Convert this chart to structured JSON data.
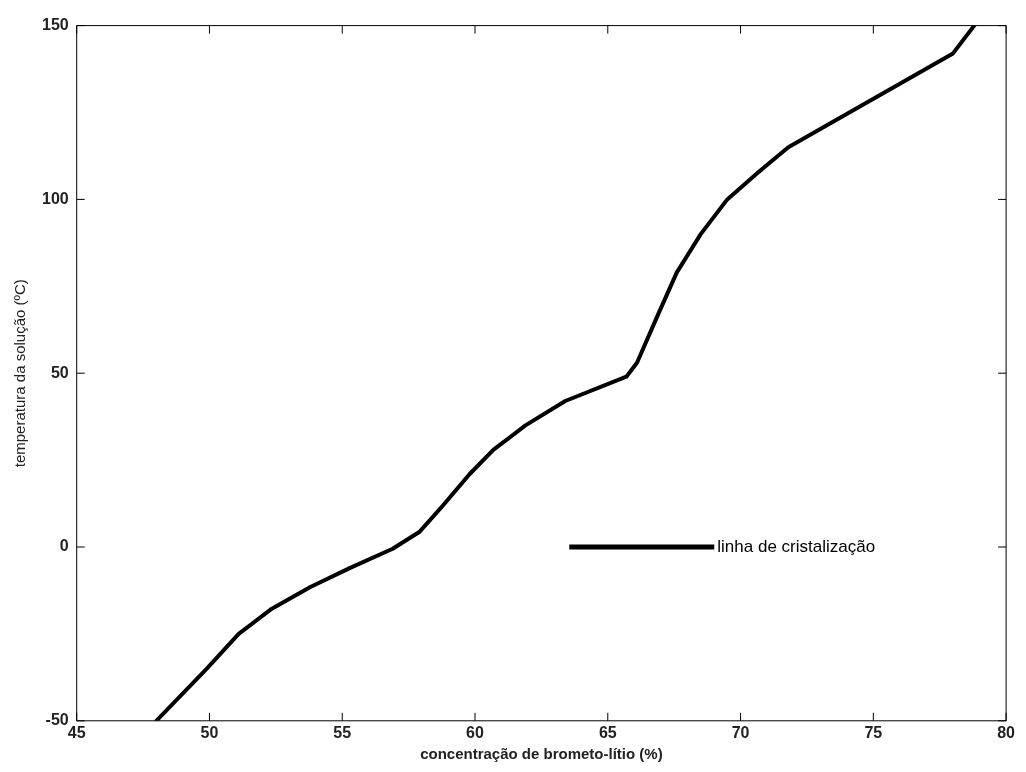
{
  "chart_data": {
    "type": "line",
    "xlabel": "concentração de brometo-lítio (%)",
    "ylabel": "temperatura da solução (ºC)",
    "xlim": [
      45,
      80
    ],
    "xticks": [
      45,
      50,
      55,
      60,
      65,
      70,
      75,
      80
    ],
    "ylim": [
      -50,
      150
    ],
    "yticks": [
      -50,
      0,
      50,
      100,
      150
    ],
    "grid": false,
    "legend": "right",
    "marker": "none",
    "line_style": "solid",
    "series": [
      {
        "name": "linha de cristalização",
        "color": "#000000",
        "x": [
          48.0,
          49.9,
          51.1,
          52.3,
          53.8,
          55.3,
          56.9,
          57.9,
          58.8,
          59.8,
          60.7,
          61.9,
          63.4,
          65.7,
          66.1,
          66.9,
          67.6,
          68.5,
          69.5,
          70.7,
          71.8,
          73.4,
          75.7,
          78.0,
          78.8
        ],
        "values": [
          -50,
          -35,
          -25,
          -18,
          -11.5,
          -6,
          -0.5,
          4.3,
          12,
          21,
          28,
          35,
          42,
          49,
          53,
          67,
          79,
          90,
          100,
          108,
          115,
          122,
          132,
          142,
          150
        ]
      }
    ]
  }
}
